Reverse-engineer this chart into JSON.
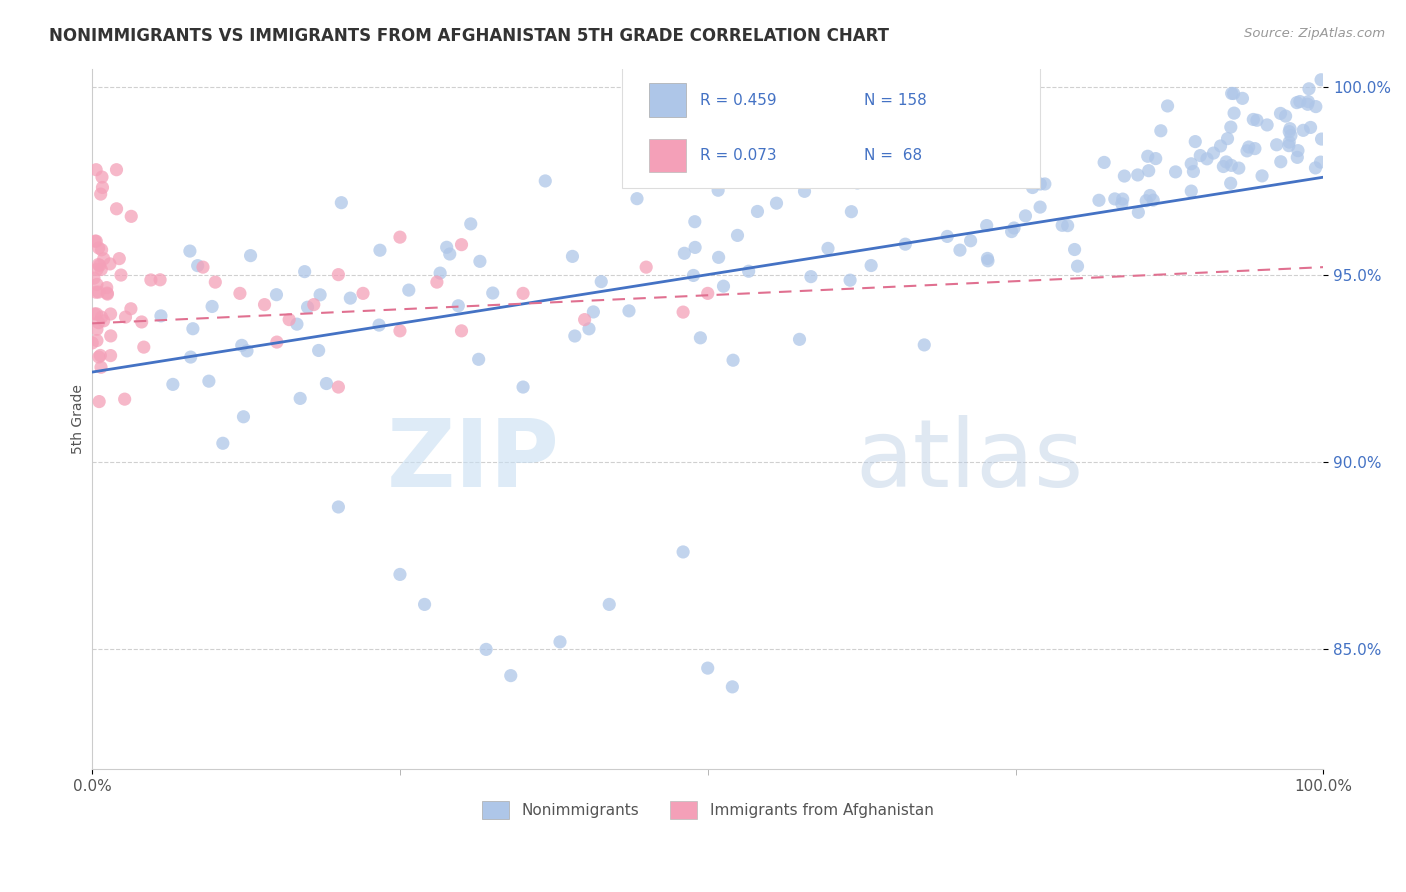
{
  "title": "NONIMMIGRANTS VS IMMIGRANTS FROM AFGHANISTAN 5TH GRADE CORRELATION CHART",
  "source": "Source: ZipAtlas.com",
  "ylabel": "5th Grade",
  "r_nonimm": 0.459,
  "n_nonimm": 158,
  "r_immAfg": 0.073,
  "n_immAfg": 68,
  "xlim": [
    0.0,
    1.0
  ],
  "ylim": [
    0.818,
    1.005
  ],
  "yticks": [
    0.85,
    0.9,
    0.95,
    1.0
  ],
  "ytick_labels": [
    "85.0%",
    "90.0%",
    "95.0%",
    "100.0%"
  ],
  "xtick_labels": [
    "0.0%",
    "100.0%"
  ],
  "color_nonimm": "#aec6e8",
  "color_immAfg": "#f4a0b8",
  "color_nonimm_line": "#4472c4",
  "color_immAfg_line": "#e07090",
  "background_color": "#ffffff",
  "watermark_zip": "ZIP",
  "watermark_atlas": "atlas",
  "title_fontsize": 12,
  "tick_fontsize": 11,
  "legend_fontsize": 11
}
